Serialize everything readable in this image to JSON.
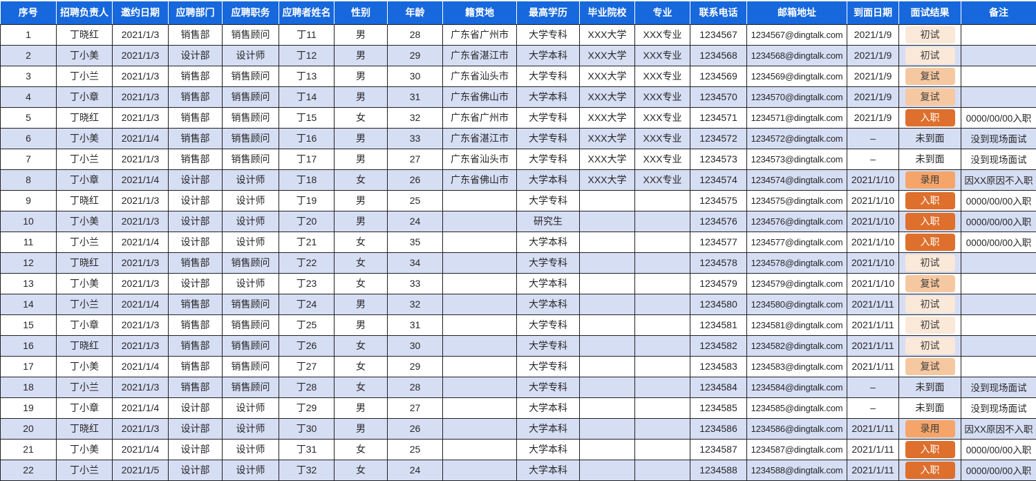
{
  "colors": {
    "header_bg": "#1668DC",
    "header_fg": "#FFFFFF",
    "row_bg": "#FFFFFF",
    "row_alt_bg": "#D6DEF4",
    "border": "#1F1F1F"
  },
  "result_styles": {
    "初试": {
      "badge": true,
      "bg": "#FAE8D8",
      "fg": "#3D3D3D"
    },
    "复试": {
      "badge": true,
      "bg": "#F6C8A1",
      "fg": "#3D3D3D"
    },
    "录用": {
      "badge": true,
      "bg": "#F5A569",
      "fg": "#3D3D3D"
    },
    "入职": {
      "badge": true,
      "bg": "#DE6F2D",
      "fg": "#FFFFFF"
    },
    "未到面": {
      "badge": false
    }
  },
  "table": {
    "columns": [
      {
        "key": "index",
        "label": "序号"
      },
      {
        "key": "recruiter",
        "label": "招聘负责人"
      },
      {
        "key": "invite-date",
        "label": "邀约日期"
      },
      {
        "key": "department",
        "label": "应聘部门"
      },
      {
        "key": "position",
        "label": "应聘职务"
      },
      {
        "key": "applicant-name",
        "label": "应聘者姓名"
      },
      {
        "key": "gender",
        "label": "性别"
      },
      {
        "key": "age",
        "label": "年龄"
      },
      {
        "key": "hometown",
        "label": "籍贯地"
      },
      {
        "key": "education",
        "label": "最高学历"
      },
      {
        "key": "school",
        "label": "毕业院校"
      },
      {
        "key": "major",
        "label": "专业"
      },
      {
        "key": "phone",
        "label": "联系电话"
      },
      {
        "key": "email",
        "label": "邮箱地址"
      },
      {
        "key": "interview-date",
        "label": "到面日期"
      },
      {
        "key": "result",
        "label": "面试结果"
      },
      {
        "key": "remark",
        "label": "备注"
      }
    ],
    "rows": [
      [
        "1",
        "丁晓红",
        "2021/1/3",
        "销售部",
        "销售顾问",
        "丁11",
        "男",
        "28",
        "广东省广州市",
        "大学专科",
        "XXX大学",
        "XXX专业",
        "1234567",
        "1234567@dingtalk.com",
        "2021/1/9",
        "初试",
        ""
      ],
      [
        "2",
        "丁小美",
        "2021/1/3",
        "设计部",
        "设计师",
        "丁12",
        "男",
        "29",
        "广东省湛江市",
        "大学本科",
        "XXX大学",
        "XXX专业",
        "1234568",
        "1234568@dingtalk.com",
        "2021/1/9",
        "初试",
        ""
      ],
      [
        "3",
        "丁小兰",
        "2021/1/3",
        "销售部",
        "销售顾问",
        "丁13",
        "男",
        "30",
        "广东省汕头市",
        "大学专科",
        "XXX大学",
        "XXX专业",
        "1234569",
        "1234569@dingtalk.com",
        "2021/1/9",
        "复试",
        ""
      ],
      [
        "4",
        "丁小章",
        "2021/1/3",
        "销售部",
        "销售顾问",
        "丁14",
        "男",
        "31",
        "广东省佛山市",
        "大学本科",
        "XXX大学",
        "XXX专业",
        "1234570",
        "1234570@dingtalk.com",
        "2021/1/9",
        "复试",
        ""
      ],
      [
        "5",
        "丁晓红",
        "2021/1/3",
        "销售部",
        "销售顾问",
        "丁15",
        "女",
        "32",
        "广东省广州市",
        "大学专科",
        "XXX大学",
        "XXX专业",
        "1234571",
        "1234571@dingtalk.com",
        "2021/1/9",
        "入职",
        "0000/00/00入职"
      ],
      [
        "6",
        "丁小美",
        "2021/1/4",
        "销售部",
        "销售顾问",
        "丁16",
        "男",
        "33",
        "广东省湛江市",
        "大学专科",
        "XXX大学",
        "XXX专业",
        "1234572",
        "1234572@dingtalk.com",
        "–",
        "未到面",
        "没到现场面试"
      ],
      [
        "7",
        "丁小兰",
        "2021/1/3",
        "销售部",
        "销售顾问",
        "丁17",
        "男",
        "27",
        "广东省汕头市",
        "大学专科",
        "XXX大学",
        "XXX专业",
        "1234573",
        "1234573@dingtalk.com",
        "–",
        "未到面",
        "没到现场面试"
      ],
      [
        "8",
        "丁小章",
        "2021/1/4",
        "设计部",
        "设计师",
        "丁18",
        "女",
        "26",
        "广东省佛山市",
        "大学本科",
        "XXX大学",
        "XXX专业",
        "1234574",
        "1234574@dingtalk.com",
        "2021/1/10",
        "录用",
        "因XX原因不入职"
      ],
      [
        "9",
        "丁晓红",
        "2021/1/3",
        "设计部",
        "设计师",
        "丁19",
        "男",
        "25",
        "",
        "大学专科",
        "",
        "",
        "1234575",
        "1234575@dingtalk.com",
        "2021/1/10",
        "入职",
        "0000/00/00入职"
      ],
      [
        "10",
        "丁小美",
        "2021/1/3",
        "设计部",
        "设计师",
        "丁20",
        "男",
        "24",
        "",
        "研究生",
        "",
        "",
        "1234576",
        "1234576@dingtalk.com",
        "2021/1/10",
        "入职",
        "0000/00/00入职"
      ],
      [
        "11",
        "丁小兰",
        "2021/1/4",
        "设计部",
        "设计师",
        "丁21",
        "女",
        "35",
        "",
        "大学本科",
        "",
        "",
        "1234577",
        "1234577@dingtalk.com",
        "2021/1/10",
        "入职",
        "0000/00/00入职"
      ],
      [
        "12",
        "丁晓红",
        "2021/1/3",
        "销售部",
        "销售顾问",
        "丁22",
        "女",
        "34",
        "",
        "大学专科",
        "",
        "",
        "1234578",
        "1234578@dingtalk.com",
        "2021/1/10",
        "初试",
        ""
      ],
      [
        "13",
        "丁小美",
        "2021/1/3",
        "设计部",
        "设计师",
        "丁23",
        "女",
        "33",
        "",
        "大学本科",
        "",
        "",
        "1234579",
        "1234579@dingtalk.com",
        "2021/1/10",
        "复试",
        ""
      ],
      [
        "14",
        "丁小兰",
        "2021/1/4",
        "销售部",
        "销售顾问",
        "丁24",
        "男",
        "32",
        "",
        "大学本科",
        "",
        "",
        "1234580",
        "1234580@dingtalk.com",
        "2021/1/11",
        "初试",
        ""
      ],
      [
        "15",
        "丁小章",
        "2021/1/3",
        "销售部",
        "销售顾问",
        "丁25",
        "男",
        "31",
        "",
        "大学专科",
        "",
        "",
        "1234581",
        "1234581@dingtalk.com",
        "2021/1/11",
        "初试",
        ""
      ],
      [
        "16",
        "丁晓红",
        "2021/1/3",
        "销售部",
        "销售顾问",
        "丁26",
        "女",
        "30",
        "",
        "大学专科",
        "",
        "",
        "1234582",
        "1234582@dingtalk.com",
        "2021/1/11",
        "初试",
        ""
      ],
      [
        "17",
        "丁小美",
        "2021/1/4",
        "销售部",
        "销售顾问",
        "丁27",
        "女",
        "29",
        "",
        "大学专科",
        "",
        "",
        "1234583",
        "1234583@dingtalk.com",
        "2021/1/11",
        "复试",
        ""
      ],
      [
        "18",
        "丁小兰",
        "2021/1/3",
        "销售部",
        "销售顾问",
        "丁28",
        "女",
        "28",
        "",
        "大学专科",
        "",
        "",
        "1234584",
        "1234584@dingtalk.com",
        "–",
        "未到面",
        "没到现场面试"
      ],
      [
        "19",
        "丁小章",
        "2021/1/4",
        "设计部",
        "设计师",
        "丁29",
        "男",
        "27",
        "",
        "大学本科",
        "",
        "",
        "1234585",
        "1234585@dingtalk.com",
        "–",
        "未到面",
        "没到现场面试"
      ],
      [
        "20",
        "丁晓红",
        "2021/1/3",
        "设计部",
        "设计师",
        "丁30",
        "男",
        "26",
        "",
        "大学本科",
        "",
        "",
        "1234586",
        "1234586@dingtalk.com",
        "2021/1/11",
        "录用",
        "因XX原因不入职"
      ],
      [
        "21",
        "丁小美",
        "2021/1/4",
        "设计部",
        "设计师",
        "丁31",
        "女",
        "25",
        "",
        "大学本科",
        "",
        "",
        "1234587",
        "1234587@dingtalk.com",
        "2021/1/11",
        "入职",
        "0000/00/00入职"
      ],
      [
        "22",
        "丁小兰",
        "2021/1/5",
        "设计部",
        "设计师",
        "丁32",
        "女",
        "24",
        "",
        "大学本科",
        "",
        "",
        "1234588",
        "1234588@dingtalk.com",
        "2021/1/11",
        "入职",
        "0000/00/00入职"
      ]
    ]
  }
}
